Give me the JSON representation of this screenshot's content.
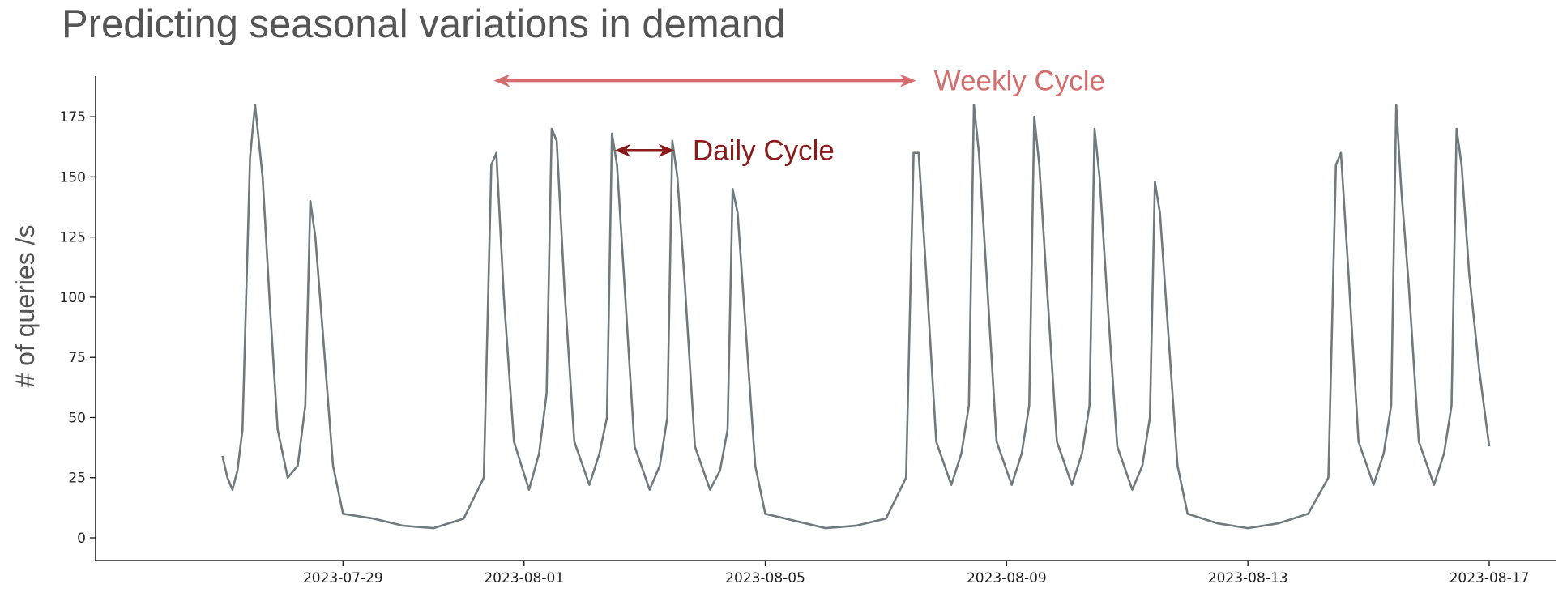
{
  "chart_data": {
    "type": "line",
    "title": "Predicting seasonal variations in demand",
    "xlabel": "",
    "ylabel": "# of queries /s",
    "xlim": [
      "2023-07-26",
      "2023-08-17"
    ],
    "ylim": [
      0,
      185
    ],
    "y_ticks": [
      0,
      25,
      50,
      75,
      100,
      125,
      150,
      175
    ],
    "x_ticks": [
      "2023-07-29",
      "2023-08-01",
      "2023-08-05",
      "2023-08-09",
      "2023-08-13",
      "2023-08-17"
    ],
    "grid": false,
    "line_color": "#6e7a7d",
    "series": [
      {
        "points": [
          [
            "2023-07-27 00:00",
            34
          ],
          [
            "2023-07-27 02:00",
            25
          ],
          [
            "2023-07-27 04:00",
            20
          ],
          [
            "2023-07-27 06:00",
            28
          ],
          [
            "2023-07-27 08:00",
            45
          ],
          [
            "2023-07-27 11:00",
            158
          ],
          [
            "2023-07-27 13:00",
            180
          ],
          [
            "2023-07-27 16:00",
            150
          ],
          [
            "2023-07-27 19:00",
            95
          ],
          [
            "2023-07-27 22:00",
            45
          ],
          [
            "2023-07-28 02:00",
            25
          ],
          [
            "2023-07-28 06:00",
            30
          ],
          [
            "2023-07-28 09:00",
            55
          ],
          [
            "2023-07-28 11:00",
            140
          ],
          [
            "2023-07-28 13:00",
            125
          ],
          [
            "2023-07-28 16:00",
            85
          ],
          [
            "2023-07-28 20:00",
            30
          ],
          [
            "2023-07-29 00:00",
            10
          ],
          [
            "2023-07-29 12:00",
            8
          ],
          [
            "2023-07-30 00:00",
            5
          ],
          [
            "2023-07-30 12:00",
            4
          ],
          [
            "2023-07-31 00:00",
            8
          ],
          [
            "2023-07-31 08:00",
            25
          ],
          [
            "2023-07-31 11:00",
            155
          ],
          [
            "2023-07-31 13:00",
            160
          ],
          [
            "2023-07-31 16:00",
            100
          ],
          [
            "2023-07-31 20:00",
            40
          ],
          [
            "2023-08-01 02:00",
            20
          ],
          [
            "2023-08-01 06:00",
            35
          ],
          [
            "2023-08-01 09:00",
            60
          ],
          [
            "2023-08-01 11:00",
            170
          ],
          [
            "2023-08-01 13:00",
            165
          ],
          [
            "2023-08-01 16:00",
            105
          ],
          [
            "2023-08-01 20:00",
            40
          ],
          [
            "2023-08-02 02:00",
            22
          ],
          [
            "2023-08-02 06:00",
            35
          ],
          [
            "2023-08-02 09:00",
            50
          ],
          [
            "2023-08-02 11:00",
            168
          ],
          [
            "2023-08-02 13:00",
            155
          ],
          [
            "2023-08-02 16:00",
            105
          ],
          [
            "2023-08-02 20:00",
            38
          ],
          [
            "2023-08-03 02:00",
            20
          ],
          [
            "2023-08-03 06:00",
            30
          ],
          [
            "2023-08-03 09:00",
            50
          ],
          [
            "2023-08-03 11:00",
            165
          ],
          [
            "2023-08-03 13:00",
            150
          ],
          [
            "2023-08-03 16:00",
            105
          ],
          [
            "2023-08-03 20:00",
            38
          ],
          [
            "2023-08-04 02:00",
            20
          ],
          [
            "2023-08-04 06:00",
            28
          ],
          [
            "2023-08-04 09:00",
            45
          ],
          [
            "2023-08-04 11:00",
            145
          ],
          [
            "2023-08-04 13:00",
            135
          ],
          [
            "2023-08-04 16:00",
            90
          ],
          [
            "2023-08-04 20:00",
            30
          ],
          [
            "2023-08-05 00:00",
            10
          ],
          [
            "2023-08-05 12:00",
            7
          ],
          [
            "2023-08-06 00:00",
            4
          ],
          [
            "2023-08-06 12:00",
            5
          ],
          [
            "2023-08-07 00:00",
            8
          ],
          [
            "2023-08-07 08:00",
            25
          ],
          [
            "2023-08-07 11:00",
            160
          ],
          [
            "2023-08-07 13:00",
            160
          ],
          [
            "2023-08-07 16:00",
            110
          ],
          [
            "2023-08-07 20:00",
            40
          ],
          [
            "2023-08-08 02:00",
            22
          ],
          [
            "2023-08-08 06:00",
            35
          ],
          [
            "2023-08-08 09:00",
            55
          ],
          [
            "2023-08-08 11:00",
            180
          ],
          [
            "2023-08-08 13:00",
            160
          ],
          [
            "2023-08-08 16:00",
            110
          ],
          [
            "2023-08-08 20:00",
            40
          ],
          [
            "2023-08-09 02:00",
            22
          ],
          [
            "2023-08-09 06:00",
            35
          ],
          [
            "2023-08-09 09:00",
            55
          ],
          [
            "2023-08-09 11:00",
            175
          ],
          [
            "2023-08-09 13:00",
            155
          ],
          [
            "2023-08-09 16:00",
            105
          ],
          [
            "2023-08-09 20:00",
            40
          ],
          [
            "2023-08-10 02:00",
            22
          ],
          [
            "2023-08-10 06:00",
            35
          ],
          [
            "2023-08-10 09:00",
            55
          ],
          [
            "2023-08-10 11:00",
            170
          ],
          [
            "2023-08-10 13:00",
            150
          ],
          [
            "2023-08-10 16:00",
            100
          ],
          [
            "2023-08-10 20:00",
            38
          ],
          [
            "2023-08-11 02:00",
            20
          ],
          [
            "2023-08-11 06:00",
            30
          ],
          [
            "2023-08-11 09:00",
            50
          ],
          [
            "2023-08-11 11:00",
            148
          ],
          [
            "2023-08-11 13:00",
            135
          ],
          [
            "2023-08-11 16:00",
            90
          ],
          [
            "2023-08-11 20:00",
            30
          ],
          [
            "2023-08-12 00:00",
            10
          ],
          [
            "2023-08-12 12:00",
            6
          ],
          [
            "2023-08-13 00:00",
            4
          ],
          [
            "2023-08-13 12:00",
            6
          ],
          [
            "2023-08-14 00:00",
            10
          ],
          [
            "2023-08-14 08:00",
            25
          ],
          [
            "2023-08-14 11:00",
            155
          ],
          [
            "2023-08-14 13:00",
            160
          ],
          [
            "2023-08-14 16:00",
            110
          ],
          [
            "2023-08-14 20:00",
            40
          ],
          [
            "2023-08-15 02:00",
            22
          ],
          [
            "2023-08-15 06:00",
            35
          ],
          [
            "2023-08-15 09:00",
            55
          ],
          [
            "2023-08-15 11:00",
            180
          ],
          [
            "2023-08-15 13:00",
            145
          ],
          [
            "2023-08-15 16:00",
            105
          ],
          [
            "2023-08-15 20:00",
            40
          ],
          [
            "2023-08-16 02:00",
            22
          ],
          [
            "2023-08-16 06:00",
            35
          ],
          [
            "2023-08-16 09:00",
            55
          ],
          [
            "2023-08-16 11:00",
            170
          ],
          [
            "2023-08-16 13:00",
            155
          ],
          [
            "2023-08-16 16:00",
            110
          ],
          [
            "2023-08-16 20:00",
            70
          ],
          [
            "2023-08-17 00:00",
            38
          ]
        ]
      }
    ],
    "annotations": [
      {
        "text": "Weekly Cycle",
        "color": "#d36e6e",
        "from": "2023-07-31 12:00",
        "to": "2023-08-07 12:00",
        "y": 190
      },
      {
        "text": "Daily Cycle",
        "color": "#8b1a1a",
        "from": "2023-08-02 12:00",
        "to": "2023-08-03 12:00",
        "y": 161
      }
    ]
  }
}
